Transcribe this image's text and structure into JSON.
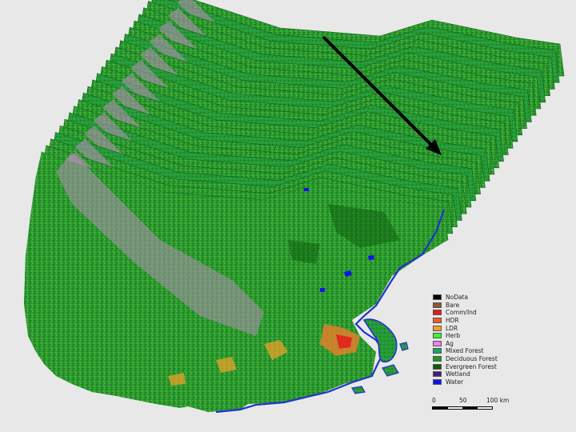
{
  "legend": {
    "items": [
      {
        "label": "NoData",
        "color": "#000000"
      },
      {
        "label": "Bare",
        "color": "#8b5a2b"
      },
      {
        "label": "Comm/Ind",
        "color": "#e31a1c"
      },
      {
        "label": "HDR",
        "color": "#f15a24"
      },
      {
        "label": "LDR",
        "color": "#f7a128"
      },
      {
        "label": "Herb",
        "color": "#33ff33"
      },
      {
        "label": "Ag",
        "color": "#ee82ee"
      },
      {
        "label": "Mixed Forest",
        "color": "#1aa56e"
      },
      {
        "label": "Deciduous Forest",
        "color": "#1f9a1f"
      },
      {
        "label": "Evergreen Forest",
        "color": "#0b5c0b"
      },
      {
        "label": "Wetland",
        "color": "#4b1a7a"
      },
      {
        "label": "Water",
        "color": "#1111ee"
      }
    ]
  },
  "scalebar": {
    "labels": [
      "0",
      "50",
      "100 km"
    ]
  },
  "arrow": {
    "icon": "time-direction-arrow"
  },
  "colors": {
    "background": "#e8e8e8",
    "forest_main": "#2c9a2e",
    "forest_dark": "#137a1c",
    "ag_band": "#b08fb3",
    "coast": "#2233cc",
    "urban": "#e0802a"
  }
}
